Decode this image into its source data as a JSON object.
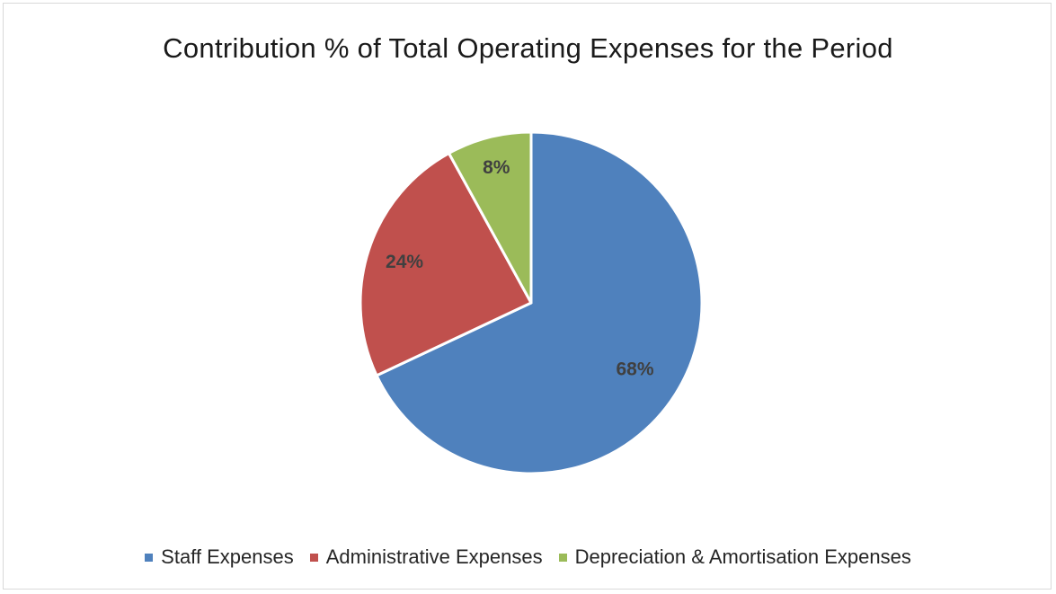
{
  "chart_data": {
    "type": "pie",
    "title": "Contribution % of Total Operating Expenses for the Period",
    "categories": [
      "Staff Expenses",
      "Administrative Expenses",
      "Depreciation & Amortisation Expenses"
    ],
    "values": [
      68,
      24,
      8
    ],
    "data_labels": [
      "68%",
      "24%",
      "8%"
    ],
    "colors": [
      "#4f81bd",
      "#c0504d",
      "#9bbb59"
    ],
    "legend_position": "bottom",
    "start_angle": "12 o'clock, clockwise"
  }
}
